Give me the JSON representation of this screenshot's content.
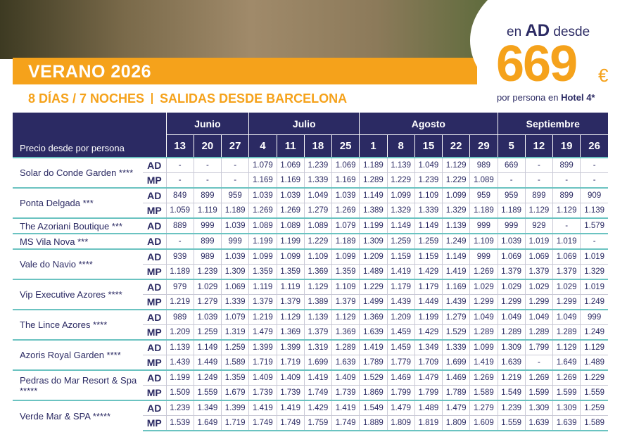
{
  "header": {
    "title": "VERANO 2026",
    "duration": "8 DÍAS / 7 NOCHES",
    "departures": "SALIDAS DESDE BARCELONA"
  },
  "badge": {
    "prefix": "en",
    "regime": "AD",
    "suffix": "desde",
    "price": "669",
    "currency": "€",
    "note": "por persona en",
    "note_bold": "Hotel 4*"
  },
  "table": {
    "corner": "Precio desde por persona",
    "months": [
      {
        "name": "Junio",
        "days": [
          "13",
          "20",
          "27"
        ]
      },
      {
        "name": "Julio",
        "days": [
          "4",
          "11",
          "18",
          "25"
        ]
      },
      {
        "name": "Agosto",
        "days": [
          "1",
          "8",
          "15",
          "22",
          "29"
        ]
      },
      {
        "name": "Septiembre",
        "days": [
          "5",
          "12",
          "19",
          "26"
        ]
      }
    ],
    "hotels": [
      {
        "name": "Solar do Conde Garden ****",
        "rows": [
          {
            "regime": "AD",
            "prices": [
              "-",
              "-",
              "-",
              "1.079",
              "1.069",
              "1.239",
              "1.069",
              "1.189",
              "1.139",
              "1.049",
              "1.129",
              "989",
              "669",
              "-",
              "899",
              "-"
            ]
          },
          {
            "regime": "MP",
            "prices": [
              "-",
              "-",
              "-",
              "1.169",
              "1.169",
              "1.339",
              "1.169",
              "1.289",
              "1.229",
              "1.239",
              "1.229",
              "1.089",
              "-",
              "-",
              "-",
              "-"
            ]
          }
        ]
      },
      {
        "name": "Ponta Delgada ***",
        "rows": [
          {
            "regime": "AD",
            "prices": [
              "849",
              "899",
              "959",
              "1.039",
              "1.039",
              "1.049",
              "1.039",
              "1.149",
              "1.099",
              "1.109",
              "1.099",
              "959",
              "959",
              "899",
              "899",
              "909"
            ]
          },
          {
            "regime": "MP",
            "prices": [
              "1.059",
              "1.119",
              "1.189",
              "1.269",
              "1.269",
              "1.279",
              "1.269",
              "1.389",
              "1.329",
              "1.339",
              "1.329",
              "1.189",
              "1.189",
              "1.129",
              "1.129",
              "1.139"
            ]
          }
        ]
      },
      {
        "name": "The Azoriani Boutique ***",
        "rows": [
          {
            "regime": "AD",
            "prices": [
              "889",
              "999",
              "1.039",
              "1.089",
              "1.089",
              "1.089",
              "1.079",
              "1.199",
              "1.149",
              "1.149",
              "1.139",
              "999",
              "999",
              "929",
              "-",
              "1.579"
            ]
          }
        ]
      },
      {
        "name": "MS Vila Nova ***",
        "rows": [
          {
            "regime": "AD",
            "prices": [
              "-",
              "899",
              "999",
              "1.199",
              "1.199",
              "1.229",
              "1.189",
              "1.309",
              "1.259",
              "1.259",
              "1.249",
              "1.109",
              "1.039",
              "1.019",
              "1.019",
              "-"
            ]
          }
        ]
      },
      {
        "name": "Vale do Navio ****",
        "rows": [
          {
            "regime": "AD",
            "prices": [
              "939",
              "989",
              "1.039",
              "1.099",
              "1.099",
              "1.109",
              "1.099",
              "1.209",
              "1.159",
              "1.159",
              "1.149",
              "999",
              "1.069",
              "1.069",
              "1.069",
              "1.019"
            ]
          },
          {
            "regime": "MP",
            "prices": [
              "1.189",
              "1.239",
              "1.309",
              "1.359",
              "1.359",
              "1.369",
              "1.359",
              "1.489",
              "1.419",
              "1.429",
              "1.419",
              "1.269",
              "1.379",
              "1.379",
              "1.379",
              "1.329"
            ]
          }
        ]
      },
      {
        "name": "Vip Executive Azores ****",
        "rows": [
          {
            "regime": "AD",
            "prices": [
              "979",
              "1.029",
              "1.069",
              "1.119",
              "1.119",
              "1.129",
              "1.109",
              "1.229",
              "1.179",
              "1.179",
              "1.169",
              "1.029",
              "1.029",
              "1.029",
              "1.029",
              "1.019"
            ]
          },
          {
            "regime": "MP",
            "prices": [
              "1.219",
              "1.279",
              "1.339",
              "1.379",
              "1.379",
              "1.389",
              "1.379",
              "1.499",
              "1.439",
              "1.449",
              "1.439",
              "1.299",
              "1.299",
              "1.299",
              "1.299",
              "1.249"
            ]
          }
        ]
      },
      {
        "name": "The Lince Azores ****",
        "rows": [
          {
            "regime": "AD",
            "prices": [
              "989",
              "1.039",
              "1.079",
              "1.219",
              "1.129",
              "1.139",
              "1.129",
              "1.369",
              "1.209",
              "1.199",
              "1.279",
              "1.049",
              "1.049",
              "1.049",
              "1.049",
              "999"
            ]
          },
          {
            "regime": "MP",
            "prices": [
              "1.209",
              "1.259",
              "1.319",
              "1.479",
              "1.369",
              "1.379",
              "1.369",
              "1.639",
              "1.459",
              "1.429",
              "1.529",
              "1.289",
              "1.289",
              "1.289",
              "1.289",
              "1.249"
            ]
          }
        ]
      },
      {
        "name": "Azoris Royal Garden ****",
        "rows": [
          {
            "regime": "AD",
            "prices": [
              "1.139",
              "1.149",
              "1.259",
              "1.399",
              "1.399",
              "1.319",
              "1.289",
              "1.419",
              "1.459",
              "1.349",
              "1.339",
              "1.099",
              "1.309",
              "1.799",
              "1.129",
              "1.129"
            ]
          },
          {
            "regime": "MP",
            "prices": [
              "1.439",
              "1.449",
              "1.589",
              "1.719",
              "1.719",
              "1.699",
              "1.639",
              "1.789",
              "1.779",
              "1.709",
              "1.699",
              "1.419",
              "1.639",
              "-",
              "1.649",
              "1.489"
            ]
          }
        ]
      },
      {
        "name": "Pedras do Mar Resort & Spa *****",
        "rows": [
          {
            "regime": "AD",
            "prices": [
              "1.199",
              "1.249",
              "1.359",
              "1.409",
              "1.409",
              "1.419",
              "1.409",
              "1.529",
              "1.469",
              "1.479",
              "1.469",
              "1.269",
              "1.219",
              "1.269",
              "1.269",
              "1.229"
            ]
          },
          {
            "regime": "MP",
            "prices": [
              "1.509",
              "1.559",
              "1.679",
              "1.739",
              "1.739",
              "1.749",
              "1.739",
              "1.869",
              "1.799",
              "1.799",
              "1.789",
              "1.589",
              "1.549",
              "1.599",
              "1.599",
              "1.559"
            ]
          }
        ]
      },
      {
        "name": "Verde Mar & SPA *****",
        "rows": [
          {
            "regime": "AD",
            "prices": [
              "1.239",
              "1.349",
              "1.399",
              "1.419",
              "1.419",
              "1.429",
              "1.419",
              "1.549",
              "1.479",
              "1.489",
              "1.479",
              "1.279",
              "1.239",
              "1.309",
              "1.309",
              "1.259"
            ]
          },
          {
            "regime": "MP",
            "prices": [
              "1.539",
              "1.649",
              "1.719",
              "1.749",
              "1.749",
              "1.759",
              "1.749",
              "1.889",
              "1.809",
              "1.819",
              "1.809",
              "1.609",
              "1.559",
              "1.639",
              "1.639",
              "1.589"
            ]
          }
        ]
      }
    ]
  }
}
